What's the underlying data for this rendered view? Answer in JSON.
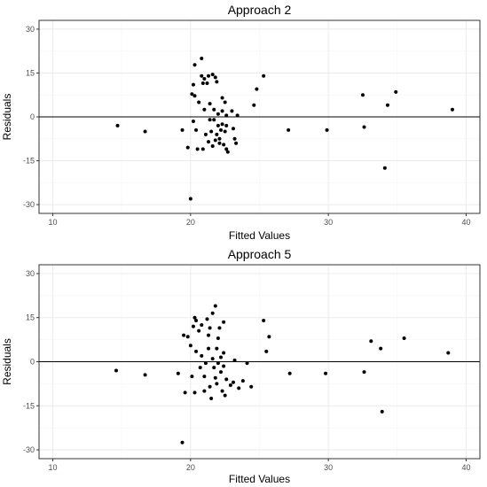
{
  "chart_data": [
    {
      "type": "scatter",
      "title": "Approach 2",
      "xlabel": "Fitted Values",
      "ylabel": "Residuals",
      "xlim": [
        9.0,
        41.0
      ],
      "ylim": [
        -33.0,
        33.0
      ],
      "xticks": [
        10,
        20,
        30,
        40
      ],
      "yticks": [
        -30,
        -15,
        0,
        15,
        30
      ],
      "hline": 0,
      "grid": true,
      "points": [
        [
          14.7,
          -3.0
        ],
        [
          16.7,
          -5.0
        ],
        [
          19.4,
          -4.5
        ],
        [
          19.8,
          -10.5
        ],
        [
          20.0,
          -28.0
        ],
        [
          20.1,
          7.8
        ],
        [
          20.2,
          11.0
        ],
        [
          20.3,
          17.8
        ],
        [
          20.3,
          7.2
        ],
        [
          20.2,
          -1.5
        ],
        [
          20.4,
          -4.5
        ],
        [
          20.5,
          -11.0
        ],
        [
          20.6,
          5.0
        ],
        [
          20.8,
          20.0
        ],
        [
          20.8,
          14.0
        ],
        [
          20.9,
          11.5
        ],
        [
          21.0,
          13.0
        ],
        [
          21.0,
          2.5
        ],
        [
          20.9,
          -11.0
        ],
        [
          21.1,
          -6.0
        ],
        [
          21.2,
          11.5
        ],
        [
          21.3,
          14.0
        ],
        [
          21.4,
          4.5
        ],
        [
          21.4,
          -1.0
        ],
        [
          21.3,
          -8.5
        ],
        [
          21.5,
          -5.0
        ],
        [
          21.6,
          14.5
        ],
        [
          21.7,
          2.5
        ],
        [
          21.7,
          -1.0
        ],
        [
          21.6,
          -10.0
        ],
        [
          21.8,
          13.5
        ],
        [
          21.9,
          12.0
        ],
        [
          21.9,
          -6.0
        ],
        [
          21.8,
          -8.0
        ],
        [
          22.0,
          1.0
        ],
        [
          22.0,
          -3.0
        ],
        [
          22.1,
          -7.5
        ],
        [
          22.1,
          -9.0
        ],
        [
          22.2,
          -4.5
        ],
        [
          22.3,
          6.5
        ],
        [
          22.3,
          2.0
        ],
        [
          22.3,
          -2.5
        ],
        [
          22.4,
          -9.5
        ],
        [
          22.5,
          5.0
        ],
        [
          22.5,
          -5.0
        ],
        [
          22.6,
          0.5
        ],
        [
          22.6,
          -3.0
        ],
        [
          22.6,
          -11.0
        ],
        [
          22.7,
          -12.0
        ],
        [
          23.0,
          2.0
        ],
        [
          23.1,
          -4.0
        ],
        [
          23.2,
          -7.5
        ],
        [
          23.3,
          -9.0
        ],
        [
          23.4,
          0.5
        ],
        [
          24.6,
          4.0
        ],
        [
          24.8,
          9.5
        ],
        [
          25.3,
          14.0
        ],
        [
          27.1,
          -4.5
        ],
        [
          29.9,
          -4.5
        ],
        [
          32.5,
          7.5
        ],
        [
          32.6,
          -3.5
        ],
        [
          34.1,
          -17.5
        ],
        [
          34.3,
          4.0
        ],
        [
          34.9,
          8.5
        ],
        [
          39.0,
          2.5
        ]
      ]
    },
    {
      "type": "scatter",
      "title": "Approach 5",
      "xlabel": "Fitted Values",
      "ylabel": "Residuals",
      "xlim": [
        9.0,
        41.0
      ],
      "ylim": [
        -33.0,
        33.0
      ],
      "xticks": [
        10,
        20,
        30,
        40
      ],
      "yticks": [
        -30,
        -15,
        0,
        15,
        30
      ],
      "hline": 0,
      "grid": true,
      "points": [
        [
          14.6,
          -3.0
        ],
        [
          16.7,
          -4.5
        ],
        [
          19.1,
          -4.0
        ],
        [
          19.5,
          9.0
        ],
        [
          19.4,
          -27.5
        ],
        [
          19.6,
          -10.5
        ],
        [
          19.8,
          8.5
        ],
        [
          20.0,
          5.5
        ],
        [
          20.1,
          -5.0
        ],
        [
          20.2,
          12.0
        ],
        [
          20.3,
          15.0
        ],
        [
          20.4,
          14.0
        ],
        [
          20.4,
          3.5
        ],
        [
          20.3,
          -10.5
        ],
        [
          20.6,
          10.5
        ],
        [
          20.7,
          -2.0
        ],
        [
          20.8,
          12.5
        ],
        [
          20.8,
          2.0
        ],
        [
          21.0,
          -5.0
        ],
        [
          21.0,
          -10.0
        ],
        [
          21.1,
          -0.5
        ],
        [
          21.2,
          14.5
        ],
        [
          21.3,
          9.0
        ],
        [
          21.3,
          4.5
        ],
        [
          21.4,
          11.5
        ],
        [
          21.4,
          -8.5
        ],
        [
          21.5,
          -12.5
        ],
        [
          21.6,
          16.5
        ],
        [
          21.6,
          1.0
        ],
        [
          21.7,
          -2.0
        ],
        [
          21.8,
          19.0
        ],
        [
          21.8,
          -5.5
        ],
        [
          21.9,
          4.5
        ],
        [
          21.9,
          -7.5
        ],
        [
          22.0,
          8.0
        ],
        [
          22.0,
          -0.5
        ],
        [
          22.1,
          11.5
        ],
        [
          22.2,
          -3.5
        ],
        [
          22.2,
          1.5
        ],
        [
          22.3,
          -10.0
        ],
        [
          22.4,
          13.5
        ],
        [
          22.4,
          3.0
        ],
        [
          22.4,
          -1.5
        ],
        [
          22.5,
          -11.5
        ],
        [
          22.6,
          -6.0
        ],
        [
          22.9,
          -8.0
        ],
        [
          23.1,
          -7.0
        ],
        [
          23.2,
          0.5
        ],
        [
          23.5,
          -9.0
        ],
        [
          23.8,
          -6.5
        ],
        [
          24.1,
          -0.5
        ],
        [
          24.4,
          -8.5
        ],
        [
          25.3,
          14.0
        ],
        [
          25.5,
          3.5
        ],
        [
          25.7,
          8.5
        ],
        [
          27.2,
          -4.0
        ],
        [
          29.8,
          -4.0
        ],
        [
          32.6,
          -3.5
        ],
        [
          33.1,
          7.0
        ],
        [
          33.8,
          4.5
        ],
        [
          33.9,
          -17.0
        ],
        [
          35.5,
          8.0
        ],
        [
          38.7,
          3.0
        ]
      ]
    }
  ]
}
